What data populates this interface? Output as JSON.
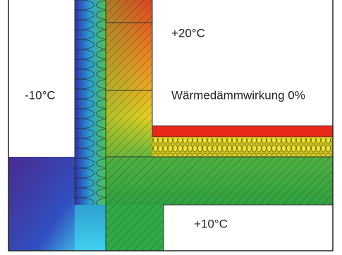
{
  "labels": {
    "inside_temperature": "+20°C",
    "outside_temperature": "-10°C",
    "insulation_effect": "Wärmedämmwirkung 0%",
    "basement_temperature": "+10°C"
  }
}
